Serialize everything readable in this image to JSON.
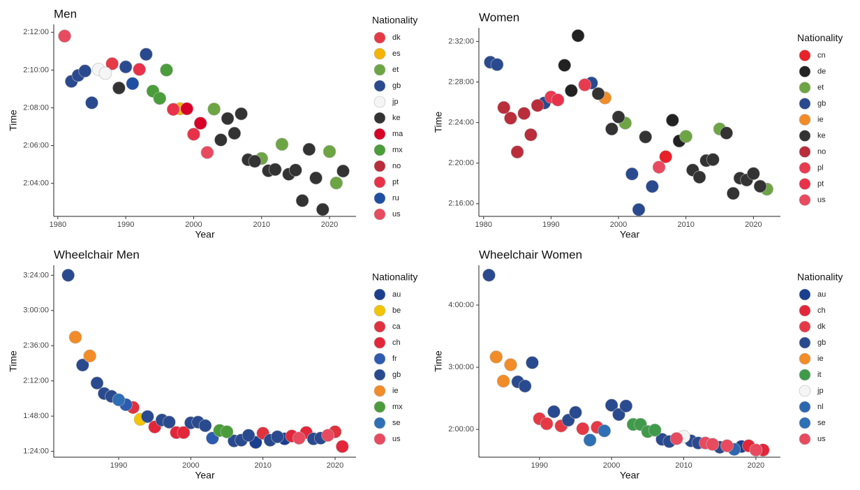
{
  "chart_data": [
    {
      "type": "scatter",
      "title": "Men",
      "x_label": "Year",
      "y_label": "Time",
      "legend_title": "Nationality",
      "xlim": [
        1979.4,
        2023.9
      ],
      "ylim": [
        7335,
        7945
      ],
      "xticks": [
        1980,
        1990,
        2000,
        2010,
        2020
      ],
      "yticks": [
        {
          "value": 7440,
          "label": "2:04:00"
        },
        {
          "value": 7560,
          "label": "2:06:00"
        },
        {
          "value": 7680,
          "label": "2:08:00"
        },
        {
          "value": 7800,
          "label": "2:10:00"
        },
        {
          "value": 7920,
          "label": "2:12:00"
        }
      ],
      "series": [
        {
          "name": "dk",
          "color": "#e63946",
          "x": [
            1988
          ],
          "values": [
            7820
          ]
        },
        {
          "name": "es",
          "color": "#f4b400",
          "x": [
            1998
          ],
          "values": [
            7677
          ]
        },
        {
          "name": "et",
          "color": "#6da544",
          "x": [
            2003,
            2010,
            2013,
            2020,
            2021
          ],
          "values": [
            7676,
            7519,
            7564,
            7541,
            7441
          ]
        },
        {
          "name": "gb",
          "color": "#2a4a8f",
          "x": [
            1982,
            1983,
            1984,
            1985,
            1990,
            1993
          ],
          "values": [
            7764,
            7783,
            7797,
            7696,
            7810,
            7850
          ]
        },
        {
          "name": "jp",
          "color": "#f5f5f5",
          "x": [
            1986,
            1987
          ],
          "values": [
            7802,
            7790
          ]
        },
        {
          "name": "ke",
          "color": "#333333",
          "x": [
            1989,
            2004,
            2005,
            2006,
            2007,
            2008,
            2009,
            2011,
            2012,
            2014,
            2015,
            2016,
            2017,
            2018,
            2019,
            2022
          ],
          "values": [
            7743,
            7578,
            7646,
            7599,
            7661,
            7515,
            7510,
            7480,
            7484,
            7469,
            7482,
            7385,
            7548,
            7457,
            7357,
            7479
          ]
        },
        {
          "name": "ma",
          "color": "#d80027",
          "x": [
            1999,
            2001
          ],
          "values": [
            7677,
            7631
          ]
        },
        {
          "name": "mx",
          "color": "#4a9d3a",
          "x": [
            1994,
            1995,
            1996
          ],
          "values": [
            7733,
            7710,
            7800
          ]
        },
        {
          "name": "no",
          "color": "#ba2d3b",
          "x": [
            1981
          ],
          "values": [
            7908
          ]
        },
        {
          "name": "pt",
          "color": "#e8324a",
          "x": [
            1992,
            1997,
            2000
          ],
          "values": [
            7802,
            7675,
            7596
          ]
        },
        {
          "name": "ru",
          "color": "#1e4fa3",
          "x": [
            1991
          ],
          "values": [
            7757
          ]
        },
        {
          "name": "us",
          "color": "#e84a5f",
          "x": [
            1981,
            2002
          ],
          "values": [
            7908,
            7538
          ]
        }
      ]
    },
    {
      "type": "scatter",
      "title": "Women",
      "x_label": "Year",
      "y_label": "Time",
      "legend_title": "Nationality",
      "xlim": [
        1979.3,
        2024.0
      ],
      "ylim": [
        8085,
        9200
      ],
      "xticks": [
        1980,
        1990,
        2000,
        2010,
        2020
      ],
      "yticks": [
        {
          "value": 8160,
          "label": "2:16:00"
        },
        {
          "value": 8400,
          "label": "2:20:00"
        },
        {
          "value": 8640,
          "label": "2:24:00"
        },
        {
          "value": 8880,
          "label": "2:28:00"
        },
        {
          "value": 9120,
          "label": "2:32:00"
        }
      ],
      "series": [
        {
          "name": "cn",
          "color": "#e8222a",
          "x": [
            2007
          ],
          "values": [
            8438
          ]
        },
        {
          "name": "de",
          "color": "#222222",
          "x": [
            1992,
            1993,
            1994,
            2008,
            2009
          ],
          "values": [
            8979,
            8829,
            9154,
            8654,
            8531
          ]
        },
        {
          "name": "et",
          "color": "#6da544",
          "x": [
            2001,
            2010,
            2015,
            2022
          ],
          "values": [
            8637,
            8558,
            8602,
            8246
          ]
        },
        {
          "name": "gb",
          "color": "#2a4a8f",
          "x": [
            1981,
            1982,
            1989,
            1996,
            2002,
            2003,
            2005
          ],
          "values": [
            8997,
            8983,
            8756,
            8874,
            8336,
            8125,
            8262
          ]
        },
        {
          "name": "ie",
          "color": "#f28c28",
          "x": [
            1998
          ],
          "values": [
            8786
          ]
        },
        {
          "name": "ke",
          "color": "#333333",
          "x": [
            1997,
            1999,
            2000,
            2004,
            2011,
            2012,
            2013,
            2014,
            2016,
            2017,
            2018,
            2019,
            2020,
            2021
          ],
          "values": [
            8811,
            8602,
            8673,
            8555,
            8359,
            8317,
            8415,
            8421,
            8578,
            8221,
            8311,
            8300,
            8338,
            8263
          ]
        },
        {
          "name": "no",
          "color": "#ba2d3b",
          "x": [
            1983,
            1984,
            1985,
            1986,
            1987,
            1988
          ],
          "values": [
            8729,
            8666,
            8466,
            8694,
            8568,
            8741
          ]
        },
        {
          "name": "pl",
          "color": "#e83b50",
          "x": [
            1990,
            1995
          ],
          "values": [
            8791,
            8863
          ]
        },
        {
          "name": "pt",
          "color": "#e8324a",
          "x": [
            1991
          ],
          "values": [
            8774
          ]
        },
        {
          "name": "us",
          "color": "#e84a5f",
          "x": [
            2006
          ],
          "values": [
            8376
          ]
        }
      ]
    },
    {
      "type": "scatter",
      "title": "Wheelchair Men",
      "x_label": "Year",
      "y_label": "Time",
      "legend_title": "Nationality",
      "xlim": [
        1981.0,
        2022.9
      ],
      "ylim": [
        4800,
        12650
      ],
      "xticks": [
        1990,
        2000,
        2010,
        2020
      ],
      "yticks": [
        {
          "value": 5040,
          "label": "1:24:00"
        },
        {
          "value": 6480,
          "label": "1:48:00"
        },
        {
          "value": 7920,
          "label": "2:12:00"
        },
        {
          "value": 9360,
          "label": "2:36:00"
        },
        {
          "value": 10800,
          "label": "3:00:00"
        },
        {
          "value": 12240,
          "label": "3:24:00"
        }
      ],
      "series": [
        {
          "name": "au",
          "color": "#1b3f8f",
          "x": [
            2009,
            2013
          ],
          "values": [
            5406,
            5550
          ]
        },
        {
          "name": "be",
          "color": "#f2c500",
          "x": [
            1993
          ],
          "values": [
            6348
          ]
        },
        {
          "name": "ca",
          "color": "#e0313f",
          "x": [
            1992,
            2010,
            2020
          ],
          "values": [
            6834,
            5778,
            5838
          ]
        },
        {
          "name": "ch",
          "color": "#e3263a",
          "x": [
            1995,
            1998,
            1999,
            2014,
            2016,
            2021
          ],
          "values": [
            6036,
            5808,
            5808,
            5664,
            5808,
            5238
          ]
        },
        {
          "name": "fr",
          "color": "#2c5bb0",
          "x": [
            1991,
            2003
          ],
          "values": [
            6948,
            5580
          ]
        },
        {
          "name": "gb",
          "color": "#2a4a8f",
          "x": [
            1983,
            1985,
            1987,
            1988,
            1989,
            1994,
            1996,
            1997,
            2000,
            2001,
            2002,
            2006,
            2007,
            2008,
            2011,
            2012,
            2017,
            2018
          ],
          "values": [
            12240,
            8568,
            7830,
            7404,
            7290,
            6462,
            6318,
            6234,
            6204,
            6234,
            6090,
            5466,
            5496,
            5694,
            5496,
            5634,
            5550,
            5580
          ]
        },
        {
          "name": "ie",
          "color": "#f28c28",
          "x": [
            1984,
            1986
          ],
          "values": [
            9708,
            8940
          ]
        },
        {
          "name": "mx",
          "color": "#4a9d3a",
          "x": [
            2004,
            2005
          ],
          "values": [
            5892,
            5838
          ]
        },
        {
          "name": "se",
          "color": "#2e6fb5",
          "x": [
            1990
          ],
          "values": [
            7146
          ]
        },
        {
          "name": "us",
          "color": "#e84a5f",
          "x": [
            2015,
            2019
          ],
          "values": [
            5580,
            5694
          ]
        }
      ]
    },
    {
      "type": "scatter",
      "title": "Wheelchair Women",
      "x_label": "Year",
      "y_label": "Time",
      "legend_title": "Nationality",
      "xlim": [
        1981.6,
        2023.4
      ],
      "ylim": [
        5592,
        16704
      ],
      "xticks": [
        1990,
        2000,
        2010,
        2020
      ],
      "yticks": [
        {
          "value": 7200,
          "label": "2:00:00"
        },
        {
          "value": 10800,
          "label": "3:00:00"
        },
        {
          "value": 14400,
          "label": "4:00:00"
        }
      ],
      "series": [
        {
          "name": "au",
          "color": "#1b3f8f",
          "x": [
            2018
          ],
          "values": [
            6210
          ]
        },
        {
          "name": "ch",
          "color": "#e3263a",
          "x": [
            2019,
            2021
          ],
          "values": [
            6252,
            6006
          ]
        },
        {
          "name": "dk",
          "color": "#e63946",
          "x": [
            1990,
            1991,
            1993,
            1996,
            1998
          ],
          "values": [
            7818,
            7530,
            7404,
            7242,
            7320
          ]
        },
        {
          "name": "gb",
          "color": "#2a4a8f",
          "x": [
            1983,
            1987,
            1988,
            1989,
            1992,
            1994,
            1995,
            2000,
            2001,
            2002,
            2007,
            2008,
            2011,
            2012,
            2015
          ],
          "values": [
            16128,
            9954,
            9708,
            11064,
            8226,
            7734,
            8184,
            8598,
            8064,
            8556,
            6624,
            6498,
            6540,
            6414,
            6168
          ]
        },
        {
          "name": "ie",
          "color": "#f28c28",
          "x": [
            1984,
            1985,
            1986
          ],
          "values": [
            11394,
            9996,
            10944
          ]
        },
        {
          "name": "it",
          "color": "#3f9b4a",
          "x": [
            2003,
            2004,
            2005,
            2006
          ],
          "values": [
            7488,
            7488,
            7074,
            7158
          ]
        },
        {
          "name": "jp",
          "color": "#f5f5f5",
          "x": [
            2010
          ],
          "values": [
            6786
          ]
        },
        {
          "name": "nl",
          "color": "#2d67b0",
          "x": [
            2017
          ],
          "values": [
            6048
          ]
        },
        {
          "name": "se",
          "color": "#2e6fb5",
          "x": [
            1997,
            1999
          ],
          "values": [
            6582,
            7116
          ]
        },
        {
          "name": "us",
          "color": "#e84a5f",
          "x": [
            2009,
            2013,
            2014,
            2016,
            2020
          ],
          "values": [
            6666,
            6414,
            6336,
            6252,
            6006
          ]
        }
      ]
    }
  ]
}
